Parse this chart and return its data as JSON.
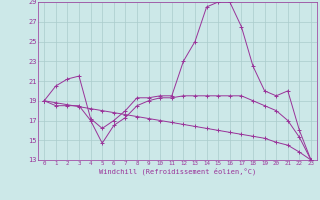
{
  "xlabel": "Windchill (Refroidissement éolien,°C)",
  "bg_color": "#cce8e8",
  "grid_color": "#aacccc",
  "line_color": "#993399",
  "spine_color": "#993399",
  "xlim": [
    -0.5,
    23.5
  ],
  "ylim": [
    13,
    29
  ],
  "yticks": [
    13,
    15,
    17,
    19,
    21,
    23,
    25,
    27,
    29
  ],
  "xticks": [
    0,
    1,
    2,
    3,
    4,
    5,
    6,
    7,
    8,
    9,
    10,
    11,
    12,
    13,
    14,
    15,
    16,
    17,
    18,
    19,
    20,
    21,
    22,
    23
  ],
  "series": [
    {
      "x": [
        0,
        1,
        2,
        3,
        4,
        5,
        6,
        7,
        8,
        9,
        10,
        11,
        12,
        13,
        14,
        15,
        16,
        17,
        18,
        19,
        20,
        21,
        22,
        23
      ],
      "y": [
        19,
        20.5,
        21.2,
        21.5,
        17.2,
        16.2,
        17.0,
        18.0,
        19.3,
        19.3,
        19.5,
        19.5,
        23.0,
        25.0,
        28.5,
        29.0,
        29.0,
        26.5,
        22.5,
        20.0,
        19.5,
        20.0,
        16.0,
        13.0
      ]
    },
    {
      "x": [
        0,
        1,
        2,
        3,
        4,
        5,
        6,
        7,
        8,
        9,
        10,
        11,
        12,
        13,
        14,
        15,
        16,
        17,
        18,
        19,
        20,
        21,
        22,
        23
      ],
      "y": [
        19,
        18.5,
        18.5,
        18.5,
        17.0,
        14.7,
        16.5,
        17.3,
        18.5,
        19.0,
        19.3,
        19.3,
        19.5,
        19.5,
        19.5,
        19.5,
        19.5,
        19.5,
        19.0,
        18.5,
        18.0,
        17.0,
        15.3,
        13.0
      ]
    },
    {
      "x": [
        0,
        1,
        2,
        3,
        4,
        5,
        6,
        7,
        8,
        9,
        10,
        11,
        12,
        13,
        14,
        15,
        16,
        17,
        18,
        19,
        20,
        21,
        22,
        23
      ],
      "y": [
        19,
        18.8,
        18.6,
        18.4,
        18.2,
        18.0,
        17.8,
        17.6,
        17.4,
        17.2,
        17.0,
        16.8,
        16.6,
        16.4,
        16.2,
        16.0,
        15.8,
        15.6,
        15.4,
        15.2,
        14.8,
        14.5,
        13.8,
        13.0
      ]
    }
  ]
}
